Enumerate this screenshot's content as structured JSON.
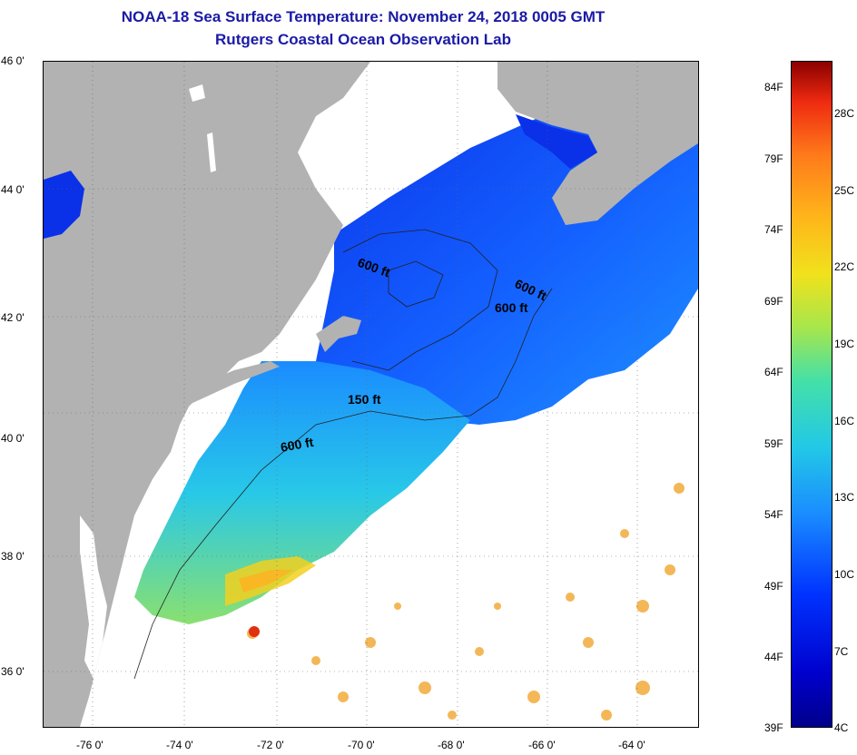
{
  "title": "NOAA-18 Sea Surface Temperature:  November 24, 2018 0005 GMT",
  "subtitle": "Rutgers Coastal Ocean Observation Lab",
  "lat_ticks": [
    "46 0'",
    "44 0'",
    "42 0'",
    "40 0'",
    "38 0'",
    "36 0'"
  ],
  "lon_ticks": [
    "-76 0'",
    "-74 0'",
    "-72 0'",
    "-70 0'",
    "-68 0'",
    "-66 0'",
    "-64 0'"
  ],
  "contour_labels": [
    "600 ft",
    "600 ft",
    "600 ft",
    "150 ft",
    "600 ft"
  ],
  "colorbar": {
    "fahrenheit": [
      "84F",
      "79F",
      "74F",
      "69F",
      "64F",
      "59F",
      "54F",
      "49F",
      "44F",
      "39F"
    ],
    "celsius": [
      "28C",
      "25C",
      "22C",
      "19C",
      "16C",
      "13C",
      "10C",
      "7C",
      "4C"
    ]
  },
  "colors": {
    "title": "#1a1aa6",
    "land": "#b2b2b2",
    "cold_water": "#0a2ee0",
    "cloud": "#ffffff"
  }
}
